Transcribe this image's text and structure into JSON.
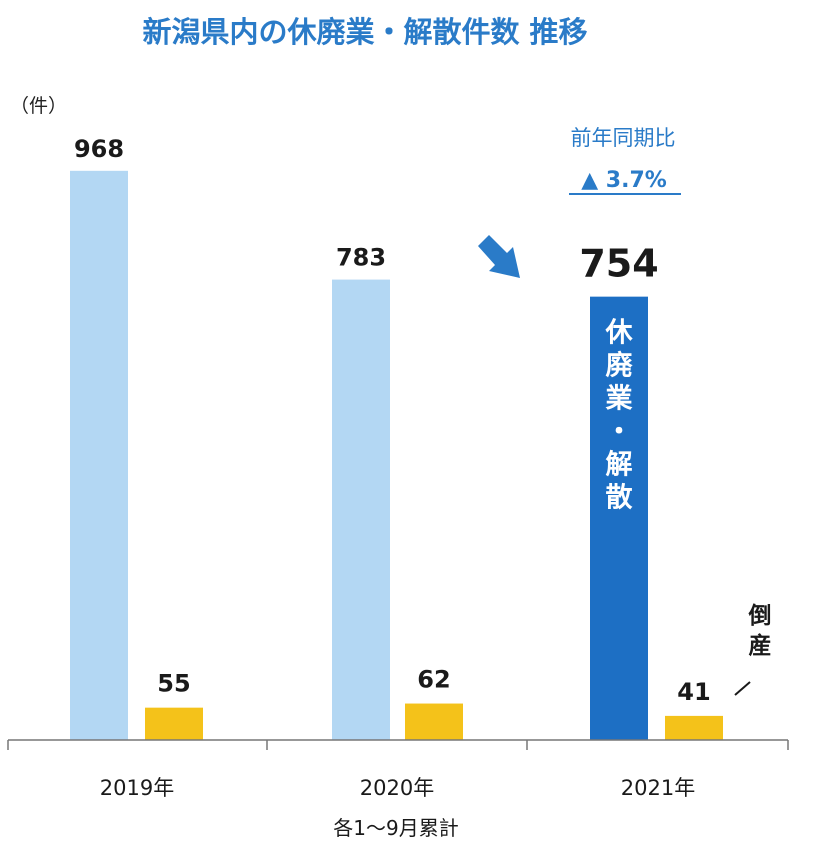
{
  "chart_data": {
    "type": "bar",
    "title": "新潟県内の休廃業・解散件数 推移",
    "ylabel": "（件）",
    "categories": [
      "2019年",
      "2020年",
      "2021年"
    ],
    "series": [
      {
        "name": "休廃業・解散",
        "values": [
          968,
          783,
          754
        ]
      },
      {
        "name": "倒産",
        "values": [
          55,
          62,
          41
        ]
      }
    ],
    "value_labels": [
      [
        "968",
        "783",
        "754"
      ],
      [
        "55",
        "62",
        "41"
      ]
    ],
    "ylim": [
      0,
      1000
    ],
    "grid": false,
    "xlabel_note": "各1～9月累計",
    "comparison": {
      "label": "前年同期比",
      "value": "▲ 3.7%"
    },
    "colors": {
      "primary_light": "#b3d7f3",
      "primary_highlight": "#1d6fc4",
      "secondary": "#f4c21a",
      "title": "#2a7bc8",
      "arrow": "#2a7bc8"
    }
  }
}
